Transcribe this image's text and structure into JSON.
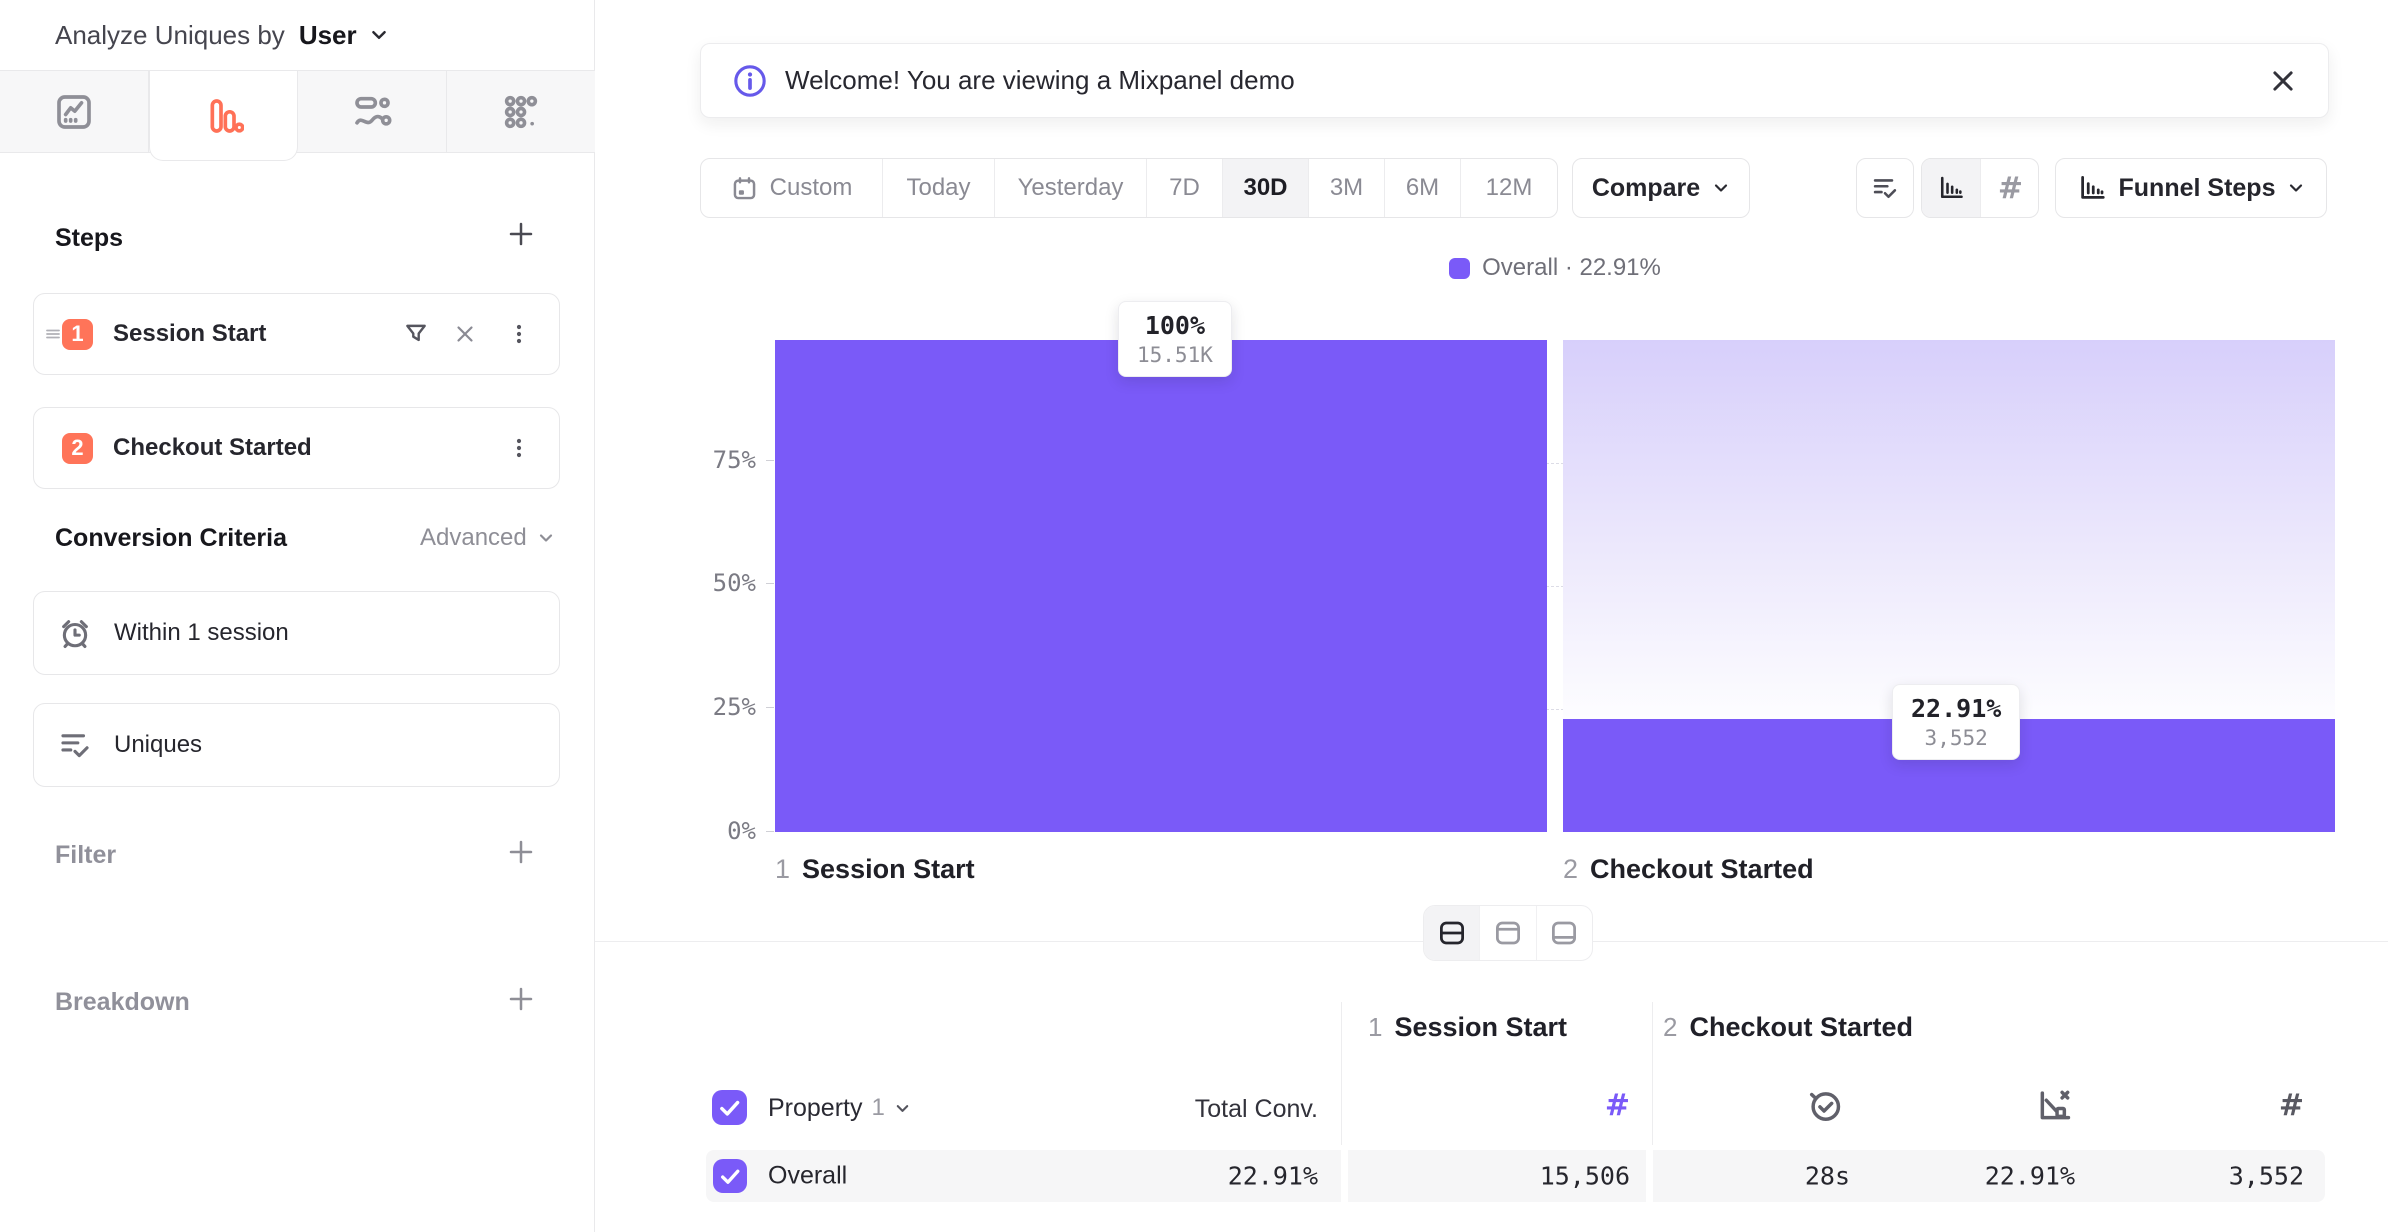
{
  "colors": {
    "accent_purple": "#7A5AF8",
    "accent_orange": "#FF7459",
    "info_icon_purple": "#6659EA",
    "bar_gradient_top": "#D7CFFB",
    "row_background": "#F6F6F7"
  },
  "sidebar": {
    "analyze_prefix": "Analyze Uniques by",
    "analyze_value": "User",
    "tabs": [
      {
        "id": "insights",
        "active": false
      },
      {
        "id": "funnels",
        "active": true
      },
      {
        "id": "flows",
        "active": false
      },
      {
        "id": "retention",
        "active": false
      }
    ],
    "steps_title": "Steps",
    "steps": [
      {
        "num": "1",
        "label": "Session Start"
      },
      {
        "num": "2",
        "label": "Checkout Started"
      }
    ],
    "conversion_title": "Conversion Criteria",
    "advanced_label": "Advanced",
    "criteria": [
      {
        "label": "Within 1 session",
        "icon": "alarm-clock"
      },
      {
        "label": "Uniques",
        "icon": "list-check"
      }
    ],
    "filter_title": "Filter",
    "breakdown_title": "Breakdown"
  },
  "banner": {
    "message": "Welcome! You are viewing a Mixpanel demo"
  },
  "toolbar": {
    "ranges": [
      "Custom",
      "Today",
      "Yesterday",
      "7D",
      "30D",
      "3M",
      "6M",
      "12M"
    ],
    "active_range": "30D",
    "compare_label": "Compare",
    "view_dropdown_label": "Funnel Steps"
  },
  "chart_data": {
    "type": "bar",
    "title": "",
    "categories": [
      "Session Start",
      "Checkout Started"
    ],
    "category_numbers": [
      "1",
      "2"
    ],
    "series": [
      {
        "name": "Overall",
        "values_pct": [
          100,
          22.91
        ],
        "counts": [
          15506,
          3552
        ]
      }
    ],
    "bar_labels": [
      {
        "pct": "100%",
        "count": "15.51K"
      },
      {
        "pct": "22.91%",
        "count": "3,552"
      }
    ],
    "yticks": [
      "75%",
      "50%",
      "25%",
      "0%"
    ],
    "ylim": [
      0,
      100
    ],
    "grid": "dashed horizontal gridlines at 25%, 50%, 75%",
    "legend": {
      "text": "Overall · 22.91%",
      "position": "top-center",
      "swatch_color": "#7A5AF8"
    }
  },
  "table": {
    "groups": [
      {
        "num": "1",
        "label": "Session Start"
      },
      {
        "num": "2",
        "label": "Checkout Started"
      }
    ],
    "property_label": "Property",
    "property_number": "1",
    "total_conv_header": "Total Conv.",
    "step1_hash": "#",
    "step2_hash": "#",
    "rows": [
      {
        "name": "Overall",
        "total_conv": "22.91%",
        "step1_uniques": "15,506",
        "step2_avg_time": "28s",
        "step2_rate": "22.91%",
        "step2_uniques": "3,552"
      }
    ]
  }
}
